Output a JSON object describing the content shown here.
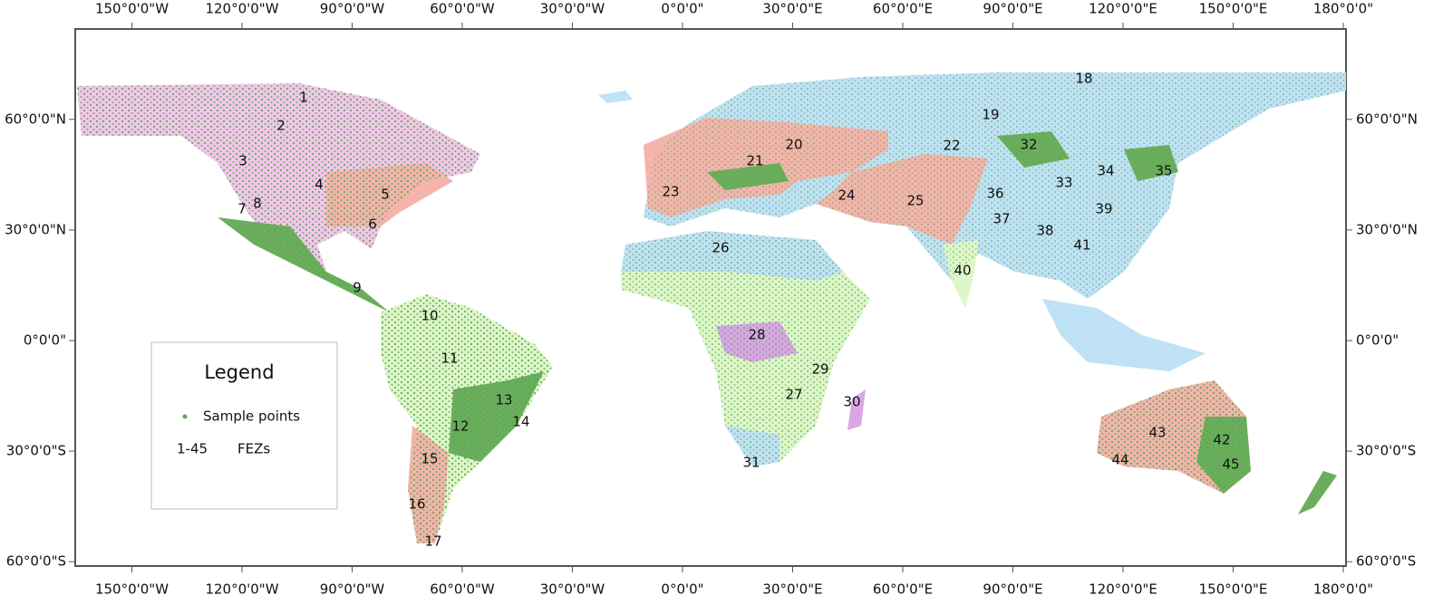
{
  "map": {
    "lon_ticks": [
      {
        "value": -150,
        "label": "150°0'0\"W"
      },
      {
        "value": -120,
        "label": "120°0'0\"W"
      },
      {
        "value": -90,
        "label": "90°0'0\"W"
      },
      {
        "value": -60,
        "label": "60°0'0\"W"
      },
      {
        "value": -30,
        "label": "30°0'0\"W"
      },
      {
        "value": 0,
        "label": "0°0'0\""
      },
      {
        "value": 30,
        "label": "30°0'0\"E"
      },
      {
        "value": 60,
        "label": "60°0'0\"E"
      },
      {
        "value": 90,
        "label": "90°0'0\"E"
      },
      {
        "value": 120,
        "label": "120°0'0\"E"
      },
      {
        "value": 150,
        "label": "150°0'0\"E"
      },
      {
        "value": 180,
        "label": "180°0'0\""
      }
    ],
    "lat_ticks": [
      {
        "value": 60,
        "label": "60°0'0\"N"
      },
      {
        "value": 30,
        "label": "30°0'0\"N"
      },
      {
        "value": 0,
        "label": "0°0'0\""
      },
      {
        "value": -30,
        "label": "30°0'0\"S"
      },
      {
        "value": -60,
        "label": "60°0'0\"S"
      }
    ],
    "zones": [
      "1",
      "2",
      "3",
      "4",
      "5",
      "6",
      "7",
      "8",
      "9",
      "10",
      "11",
      "12",
      "13",
      "14",
      "15",
      "16",
      "17",
      "18",
      "19",
      "20",
      "21",
      "22",
      "23",
      "24",
      "25",
      "26",
      "27",
      "28",
      "29",
      "30",
      "31",
      "32",
      "33",
      "34",
      "35",
      "36",
      "37",
      "38",
      "39",
      "40",
      "41",
      "42",
      "43",
      "44",
      "45"
    ],
    "legend": {
      "title": "Legend",
      "sample_label": "Sample points",
      "range_label": "1-45",
      "zone_label": "FEZs"
    }
  }
}
